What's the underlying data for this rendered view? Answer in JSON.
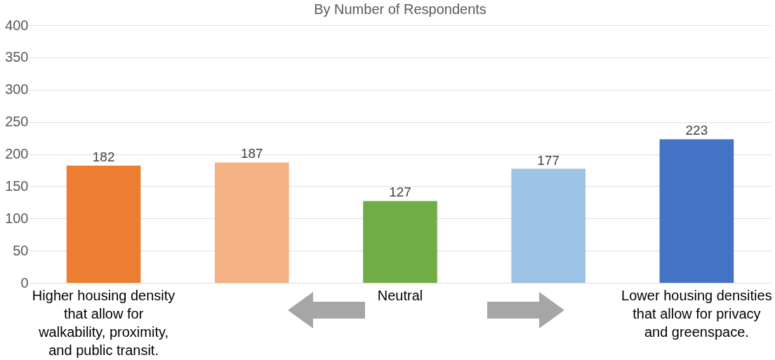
{
  "chart_data": {
    "type": "bar",
    "title": "By Number of Respondents",
    "categories": [
      "Higher housing density that allow for walkability, proximity, and public transit.",
      null,
      "Neutral",
      null,
      "Lower housing densities that allow for privacy and greenspace."
    ],
    "values": [
      182,
      187,
      127,
      177,
      223
    ],
    "colors": [
      "#ed7d31",
      "#f4b183",
      "#70ad47",
      "#9dc3e6",
      "#4472c4"
    ],
    "ylim": [
      0,
      400
    ],
    "yticks": [
      0,
      50,
      100,
      150,
      200,
      250,
      300,
      350,
      400
    ],
    "grid": "y",
    "data_labels": true
  }
}
